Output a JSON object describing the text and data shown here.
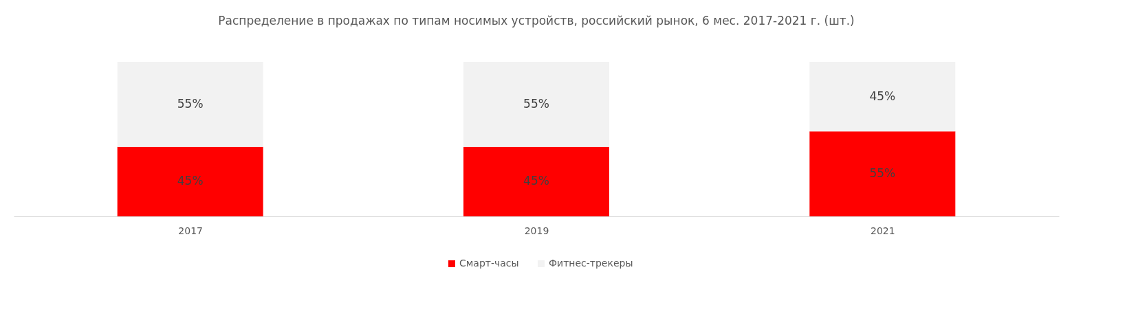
{
  "chart_data": {
    "type": "bar",
    "title": "Распределение в продажах по типам носимых устройств, российский рынок, 6 мес. 2017-2021 г. (шт.)",
    "categories": [
      "2017",
      "2019",
      "2021"
    ],
    "stacked": true,
    "legend": "bottom",
    "tick_labels": "x",
    "series": [
      {
        "name": "Смарт-часы",
        "color": "#ff0000",
        "values": [
          45,
          45,
          55
        ],
        "value_labels": [
          "45%",
          "45%",
          "55%"
        ]
      },
      {
        "name": "Фитнес-трекеры",
        "color": "#f2f2f2",
        "values": [
          55,
          55,
          45
        ],
        "value_labels": [
          "55%",
          "55%",
          "45%"
        ]
      }
    ]
  }
}
